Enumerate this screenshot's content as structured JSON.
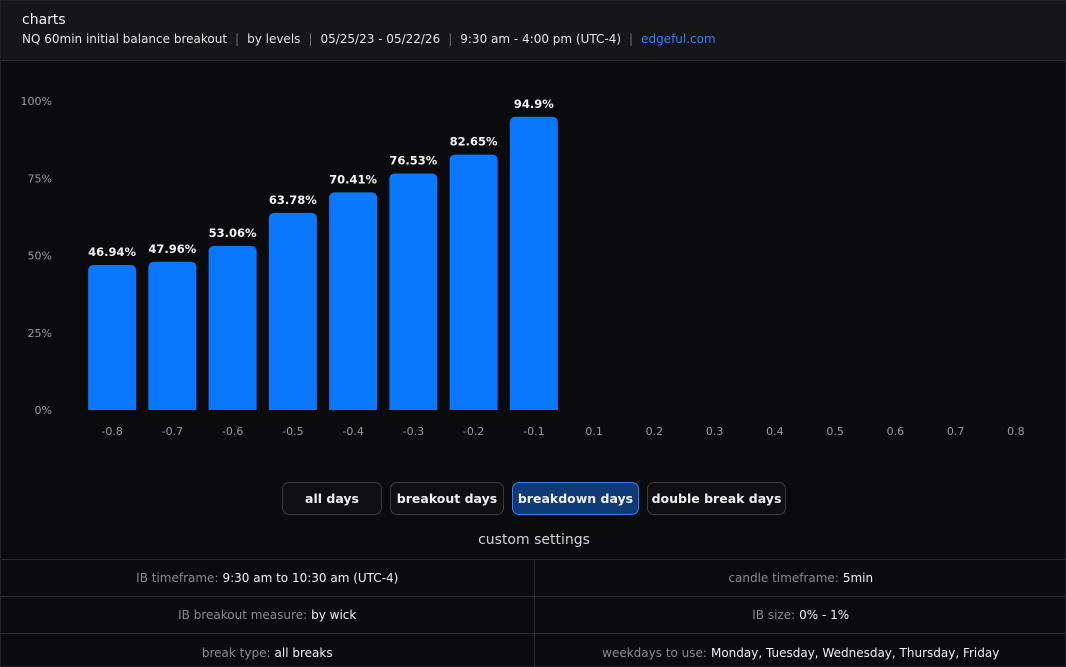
{
  "header": {
    "title": "charts",
    "subtitle_parts": [
      "NQ 60min initial balance breakout",
      "by levels",
      "05/25/23 - 05/22/26",
      "9:30 am - 4:00 pm (UTC-4)"
    ],
    "separator": "|",
    "link_text": "edgeful.com"
  },
  "colors": {
    "bar": "#0a77ff",
    "accent_link": "#2f7fff",
    "active_button": "#0f3a78"
  },
  "chart_data": {
    "type": "bar",
    "categories": [
      "-0.8",
      "-0.7",
      "-0.6",
      "-0.5",
      "-0.4",
      "-0.3",
      "-0.2",
      "-0.1",
      "0.1",
      "0.2",
      "0.3",
      "0.4",
      "0.5",
      "0.6",
      "0.7",
      "0.8"
    ],
    "values": [
      46.94,
      47.96,
      53.06,
      63.78,
      70.41,
      76.53,
      82.65,
      94.9,
      null,
      null,
      null,
      null,
      null,
      null,
      null,
      null
    ],
    "data_labels": [
      "46.94%",
      "47.96%",
      "53.06%",
      "63.78%",
      "70.41%",
      "76.53%",
      "82.65%",
      "94.9%",
      "",
      "",
      "",
      "",
      "",
      "",
      "",
      ""
    ],
    "yticks": [
      "0%",
      "25%",
      "50%",
      "75%",
      "100%"
    ],
    "ylim": [
      0,
      100
    ],
    "grid": false,
    "legend": "none"
  },
  "filters": [
    {
      "label": "all days",
      "active": false
    },
    {
      "label": "breakout days",
      "active": false
    },
    {
      "label": "breakdown days",
      "active": true
    },
    {
      "label": "double break days",
      "active": false
    }
  ],
  "settings": {
    "title": "custom settings",
    "rows": [
      [
        {
          "label": "IB timeframe:",
          "value": "9:30 am to 10:30 am (UTC-4)"
        },
        {
          "label": "candle timeframe:",
          "value": "5min"
        }
      ],
      [
        {
          "label": "IB breakout measure:",
          "value": "by wick"
        },
        {
          "label": "IB size:",
          "value": "0% - 1%"
        }
      ],
      [
        {
          "label": "break type:",
          "value": "all breaks"
        },
        {
          "label": "weekdays to use:",
          "value": "Monday, Tuesday, Wednesday, Thursday, Friday"
        }
      ]
    ]
  }
}
